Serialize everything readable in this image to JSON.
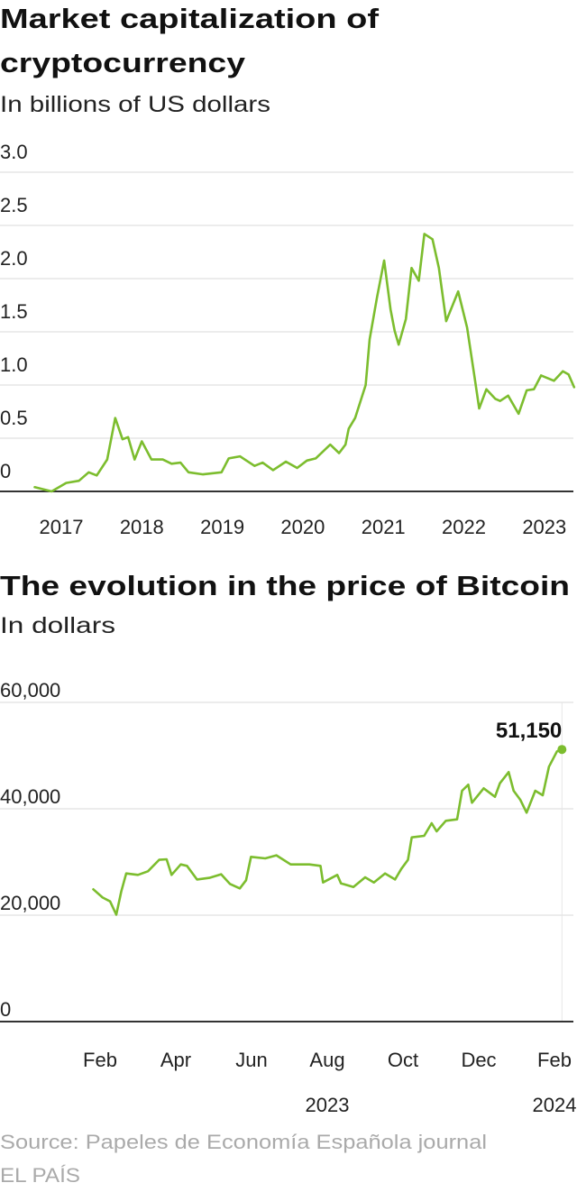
{
  "colors": {
    "line": "#7cbd2e",
    "text": "#222222",
    "grid": "#e6e6e6",
    "source": "#aaaaaa"
  },
  "chart_data": [
    {
      "type": "line",
      "title": "Market capitalization of cryptocurrency",
      "title_lines": [
        "Market capitalization of",
        "cryptocurrency"
      ],
      "subtitle": "In billions of US dollars",
      "xlabel": "",
      "ylabel": "",
      "ylim": [
        0,
        3.0
      ],
      "yticks": [
        0,
        0.5,
        1.0,
        1.5,
        2.0,
        2.5,
        3.0
      ],
      "ytick_labels": [
        "0",
        "0.5",
        "1.0",
        "1.5",
        "2.0",
        "2.5",
        "3.0"
      ],
      "xticks": [
        2017,
        2018,
        2019,
        2020,
        2021,
        2022,
        2023
      ],
      "xtick_labels": [
        "2017",
        "2018",
        "2019",
        "2020",
        "2021",
        "2022",
        "2023"
      ],
      "grid": true,
      "x": [
        2016.67,
        2016.88,
        2017.06,
        2017.22,
        2017.34,
        2017.44,
        2017.57,
        2017.67,
        2017.76,
        2017.83,
        2017.91,
        2018.0,
        2018.12,
        2018.26,
        2018.37,
        2018.48,
        2018.58,
        2018.76,
        2018.99,
        2019.08,
        2019.22,
        2019.4,
        2019.5,
        2019.63,
        2019.79,
        2019.93,
        2020.05,
        2020.16,
        2020.34,
        2020.45,
        2020.53,
        2020.57,
        2020.65,
        2020.78,
        2020.83,
        2020.92,
        2021.01,
        2021.09,
        2021.14,
        2021.19,
        2021.28,
        2021.35,
        2021.44,
        2021.51,
        2021.61,
        2021.69,
        2021.78,
        2021.93,
        2022.04,
        2022.13,
        2022.19,
        2022.28,
        2022.39,
        2022.45,
        2022.55,
        2022.68,
        2022.78,
        2022.87,
        2022.96,
        2023.12,
        2023.23,
        2023.3,
        2023.37
      ],
      "values": [
        0.04,
        0.0,
        0.08,
        0.1,
        0.18,
        0.15,
        0.3,
        0.69,
        0.49,
        0.51,
        0.3,
        0.47,
        0.3,
        0.3,
        0.26,
        0.27,
        0.18,
        0.16,
        0.18,
        0.31,
        0.33,
        0.24,
        0.27,
        0.2,
        0.28,
        0.22,
        0.29,
        0.31,
        0.44,
        0.36,
        0.44,
        0.59,
        0.69,
        1.0,
        1.43,
        1.82,
        2.17,
        1.71,
        1.51,
        1.38,
        1.62,
        2.1,
        1.98,
        2.42,
        2.37,
        2.1,
        1.6,
        1.88,
        1.54,
        1.09,
        0.78,
        0.96,
        0.87,
        0.85,
        0.9,
        0.73,
        0.95,
        0.96,
        1.09,
        1.04,
        1.13,
        1.1,
        0.98
      ]
    },
    {
      "type": "line",
      "title": "The evolution in the price of Bitcoin",
      "subtitle": "In dollars",
      "xlabel": "",
      "ylabel": "",
      "ylim": [
        0,
        60000
      ],
      "yticks": [
        0,
        20000,
        40000,
        60000
      ],
      "ytick_labels": [
        "0",
        "20,000",
        "40,000",
        "60,000"
      ],
      "xticks": [
        "2023-02-01",
        "2023-04-01",
        "2023-06-01",
        "2023-08-01",
        "2023-10-01",
        "2023-12-01",
        "2024-02-01"
      ],
      "xtick_labels": [
        "Feb",
        "Apr",
        "Jun",
        "Aug",
        "Oct",
        "Dec",
        "Feb"
      ],
      "year_labels": [
        {
          "label": "2023",
          "at": "2023-08-01"
        },
        {
          "label": "2024",
          "at": "2024-02-01"
        }
      ],
      "grid": true,
      "annotation": {
        "label": "51,150",
        "value": 51150,
        "date": "2024-02-07"
      },
      "x": [
        "2023-01-26",
        "2023-02-03",
        "2023-02-09",
        "2023-02-14",
        "2023-02-18",
        "2023-02-22",
        "2023-03-01",
        "2023-03-09",
        "2023-03-18",
        "2023-03-24",
        "2023-03-28",
        "2023-04-05",
        "2023-04-10",
        "2023-04-18",
        "2023-04-28",
        "2023-05-07",
        "2023-05-14",
        "2023-05-22",
        "2023-05-27",
        "2023-05-31",
        "2023-06-12",
        "2023-06-21",
        "2023-07-02",
        "2023-07-17",
        "2023-07-26",
        "2023-07-28",
        "2023-08-09",
        "2023-08-12",
        "2023-08-22",
        "2023-09-01",
        "2023-09-08",
        "2023-09-17",
        "2023-09-25",
        "2023-09-30",
        "2023-10-05",
        "2023-10-08",
        "2023-10-18",
        "2023-10-24",
        "2023-10-28",
        "2023-11-05",
        "2023-11-14",
        "2023-11-18",
        "2023-11-23",
        "2023-11-26",
        "2023-12-05",
        "2023-12-14",
        "2023-12-18",
        "2023-12-25",
        "2023-12-29",
        "2024-01-04",
        "2024-01-09",
        "2024-01-16",
        "2024-01-22",
        "2024-01-27",
        "2024-02-03",
        "2024-02-07"
      ],
      "values": [
        24860,
        23330,
        22600,
        20110,
        24460,
        27850,
        27570,
        28250,
        30400,
        30510,
        27570,
        29550,
        29270,
        26720,
        27010,
        27690,
        25880,
        25030,
        26560,
        30960,
        30680,
        31250,
        29550,
        29550,
        29270,
        26160,
        27570,
        25990,
        25310,
        27120,
        26160,
        27850,
        26720,
        28700,
        30400,
        34630,
        34920,
        37290,
        35760,
        37740,
        38020,
        43390,
        44520,
        41130,
        43840,
        42260,
        44800,
        46900,
        43390,
        41700,
        39270,
        43390,
        42540,
        47910,
        50800,
        51150
      ]
    }
  ],
  "footer": {
    "source": "Source: Papeles de Economía Española journal",
    "credit": "EL PAÍS"
  }
}
